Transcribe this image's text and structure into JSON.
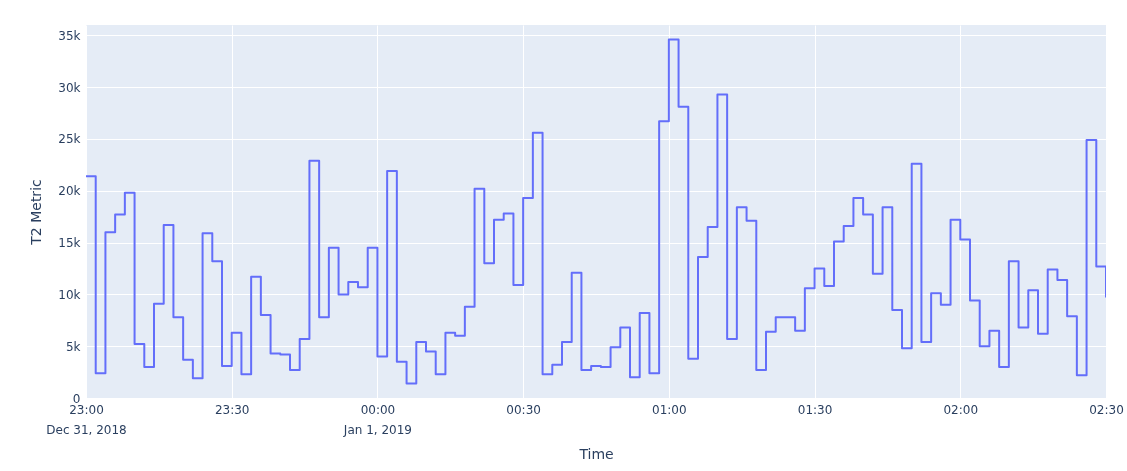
{
  "chart_data": {
    "type": "step",
    "xlabel": "Time",
    "ylabel": "T2 Metric",
    "x": [
      "2018-12-31T23:00",
      "2018-12-31T23:02",
      "2018-12-31T23:04",
      "2018-12-31T23:06",
      "2018-12-31T23:08",
      "2018-12-31T23:10",
      "2018-12-31T23:12",
      "2018-12-31T23:14",
      "2018-12-31T23:16",
      "2018-12-31T23:18",
      "2018-12-31T23:20",
      "2018-12-31T23:22",
      "2018-12-31T23:24",
      "2018-12-31T23:26",
      "2018-12-31T23:28",
      "2018-12-31T23:30",
      "2018-12-31T23:32",
      "2018-12-31T23:34",
      "2018-12-31T23:36",
      "2018-12-31T23:38",
      "2018-12-31T23:40",
      "2018-12-31T23:42",
      "2018-12-31T23:44",
      "2018-12-31T23:46",
      "2018-12-31T23:48",
      "2018-12-31T23:50",
      "2018-12-31T23:52",
      "2018-12-31T23:54",
      "2018-12-31T23:56",
      "2018-12-31T23:58",
      "2019-01-01T00:00",
      "2019-01-01T00:02",
      "2019-01-01T00:04",
      "2019-01-01T00:06",
      "2019-01-01T00:08",
      "2019-01-01T00:10",
      "2019-01-01T00:12",
      "2019-01-01T00:14",
      "2019-01-01T00:16",
      "2019-01-01T00:18",
      "2019-01-01T00:20",
      "2019-01-01T00:22",
      "2019-01-01T00:24",
      "2019-01-01T00:26",
      "2019-01-01T00:28",
      "2019-01-01T00:30",
      "2019-01-01T00:32",
      "2019-01-01T00:34",
      "2019-01-01T00:36",
      "2019-01-01T00:38",
      "2019-01-01T00:40",
      "2019-01-01T00:42",
      "2019-01-01T00:44",
      "2019-01-01T00:46",
      "2019-01-01T00:48",
      "2019-01-01T00:50",
      "2019-01-01T00:52",
      "2019-01-01T00:54",
      "2019-01-01T00:56",
      "2019-01-01T00:58",
      "2019-01-01T01:00",
      "2019-01-01T01:02",
      "2019-01-01T01:04",
      "2019-01-01T01:06",
      "2019-01-01T01:08",
      "2019-01-01T01:10",
      "2019-01-01T01:12",
      "2019-01-01T01:14",
      "2019-01-01T01:16",
      "2019-01-01T01:18",
      "2019-01-01T01:20",
      "2019-01-01T01:22",
      "2019-01-01T01:24",
      "2019-01-01T01:26",
      "2019-01-01T01:28",
      "2019-01-01T01:30",
      "2019-01-01T01:32",
      "2019-01-01T01:34",
      "2019-01-01T01:36",
      "2019-01-01T01:38",
      "2019-01-01T01:40",
      "2019-01-01T01:42",
      "2019-01-01T01:44",
      "2019-01-01T01:46",
      "2019-01-01T01:48",
      "2019-01-01T01:50",
      "2019-01-01T01:52",
      "2019-01-01T01:54",
      "2019-01-01T01:56",
      "2019-01-01T01:58",
      "2019-01-01T02:00",
      "2019-01-01T02:02",
      "2019-01-01T02:04",
      "2019-01-01T02:06",
      "2019-01-01T02:08",
      "2019-01-01T02:10",
      "2019-01-01T02:12",
      "2019-01-01T02:14",
      "2019-01-01T02:16",
      "2019-01-01T02:18",
      "2019-01-01T02:20",
      "2019-01-01T02:22",
      "2019-01-01T02:24",
      "2019-01-01T02:26",
      "2019-01-01T02:28",
      "2019-01-01T02:30"
    ],
    "series": [
      {
        "color": "#636efa",
        "values": [
          21400,
          2400,
          16000,
          17700,
          19800,
          5200,
          3000,
          9100,
          16700,
          7800,
          3700,
          1900,
          15900,
          13200,
          3100,
          6300,
          2300,
          11700,
          8000,
          4300,
          4200,
          2700,
          5700,
          22900,
          7800,
          14500,
          10000,
          11200,
          10700,
          14500,
          4000,
          21900,
          3500,
          1400,
          5400,
          4500,
          2300,
          6300,
          6000,
          8800,
          20200,
          13000,
          17200,
          17800,
          10900,
          19300,
          25600,
          2300,
          3200,
          5400,
          12100,
          2700,
          3100,
          3000,
          4900,
          6800,
          2000,
          8200,
          2400,
          26700,
          34600,
          28100,
          3800,
          13600,
          16500,
          29300,
          5700,
          18400,
          17100,
          2700,
          6400,
          7800,
          7800,
          6500,
          10600,
          12500,
          10800,
          15100,
          16600,
          19300,
          17700,
          12000,
          18400,
          8500,
          4800,
          22600,
          5400,
          10100,
          9000,
          17200,
          15300,
          9400,
          5000,
          6500,
          3000,
          13200,
          6800,
          10400,
          6200,
          12400,
          11400,
          7900,
          2200,
          24900,
          12700,
          9700
        ]
      }
    ],
    "xlim": [
      "2018-12-31T23:00",
      "2019-01-01T02:30"
    ],
    "xticks": [
      {
        "value": "2018-12-31T23:00",
        "label": "23:00\nDec 31, 2018"
      },
      {
        "value": "2018-12-31T23:30",
        "label": "23:30"
      },
      {
        "value": "2019-01-01T00:00",
        "label": "00:00\nJan 1, 2019"
      },
      {
        "value": "2019-01-01T00:30",
        "label": "00:30"
      },
      {
        "value": "2019-01-01T01:00",
        "label": "01:00"
      },
      {
        "value": "2019-01-01T01:30",
        "label": "01:30"
      },
      {
        "value": "2019-01-01T02:00",
        "label": "02:00"
      },
      {
        "value": "2019-01-01T02:30",
        "label": "02:30"
      }
    ],
    "ylim": [
      0,
      36000
    ],
    "yticks": [
      0,
      {
        "value": 5000,
        "label": "5k"
      },
      {
        "value": 10000,
        "label": "10k"
      },
      {
        "value": 15000,
        "label": "15k"
      },
      {
        "value": 20000,
        "label": "20k"
      },
      {
        "value": 25000,
        "label": "25k"
      },
      {
        "value": 30000,
        "label": "30k"
      },
      {
        "value": 35000,
        "label": "35k"
      }
    ],
    "grid": true,
    "line_style": "solid"
  }
}
